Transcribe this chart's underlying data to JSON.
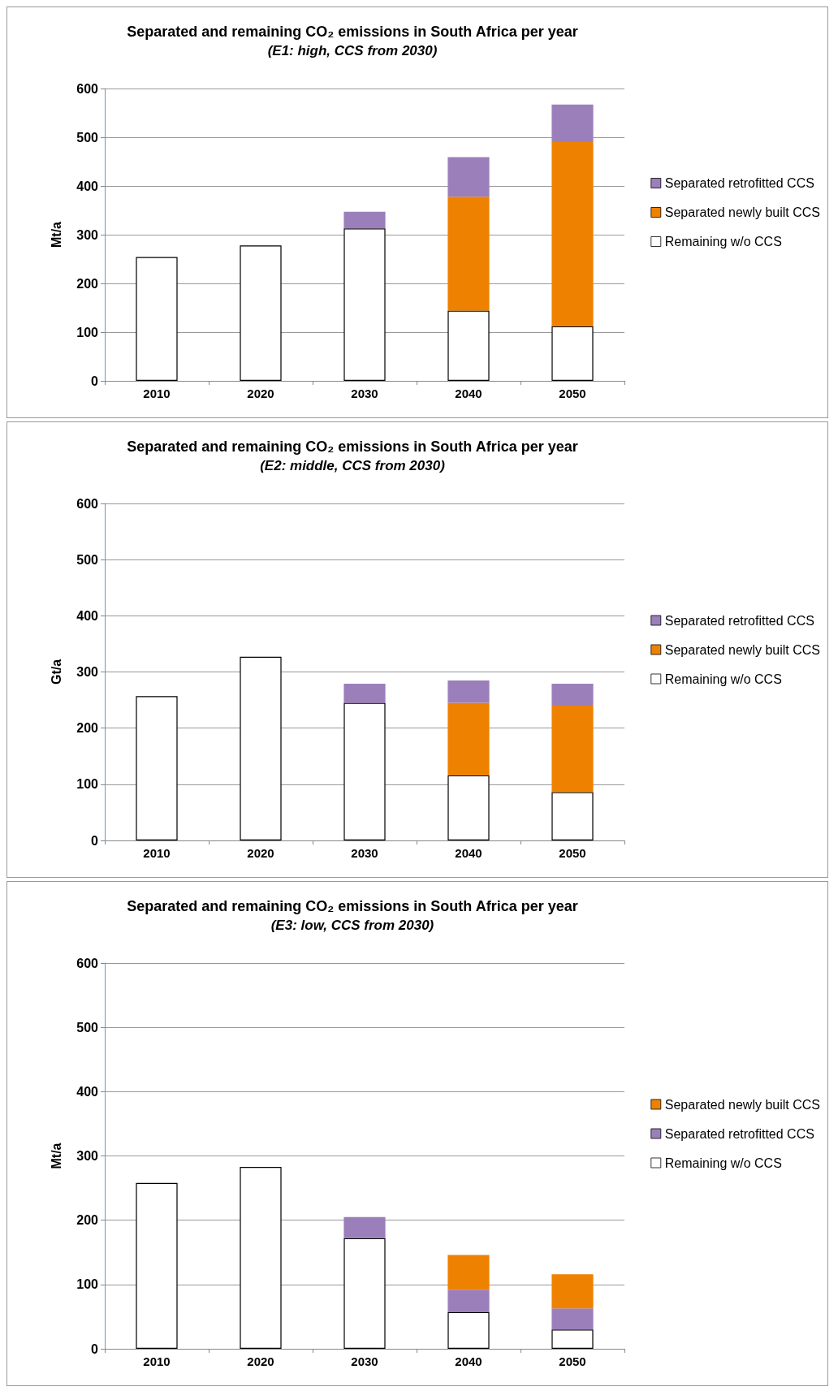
{
  "chart_data": [
    {
      "type": "bar",
      "title": "Separated and remaining CO₂ emissions in South Africa per year",
      "subtitle": "(E1: high, CCS from 2030)",
      "ylabel": "Mt/a",
      "categories": [
        "2010",
        "2020",
        "2030",
        "2040",
        "2050"
      ],
      "stacked": true,
      "ylim": [
        0,
        600
      ],
      "yticks": [
        0,
        100,
        200,
        300,
        400,
        500,
        600
      ],
      "grid": "y",
      "legend": "right",
      "series": [
        {
          "name": "Remaining w/o CCS",
          "color": "#ffffff",
          "values": [
            254,
            278,
            313,
            144,
            112
          ]
        },
        {
          "name": "Separated newly built CCS",
          "color": "#ee8100",
          "values": [
            null,
            null,
            null,
            234,
            378
          ]
        },
        {
          "name": "Separated retrofitted CCS",
          "color": "#9b7fbb",
          "values": [
            null,
            null,
            34,
            81,
            77
          ]
        }
      ]
    },
    {
      "type": "bar",
      "title": "Separated and remaining CO₂ emissions in South Africa per year",
      "subtitle": "(E2: middle, CCS from 2030)",
      "ylabel": "Gt/a",
      "categories": [
        "2010",
        "2020",
        "2030",
        "2040",
        "2050"
      ],
      "stacked": true,
      "ylim": [
        0,
        600
      ],
      "yticks": [
        0,
        100,
        200,
        300,
        400,
        500,
        600
      ],
      "grid": "y",
      "legend": "right",
      "series": [
        {
          "name": "Remaining w/o CCS",
          "color": "#ffffff",
          "values": [
            257,
            327,
            245,
            116,
            86
          ]
        },
        {
          "name": "Separated newly built CCS",
          "color": "#ee8100",
          "values": [
            null,
            null,
            null,
            129,
            154
          ]
        },
        {
          "name": "Separated retrofitted CCS",
          "color": "#9b7fbb",
          "values": [
            null,
            null,
            34,
            40,
            39
          ]
        }
      ]
    },
    {
      "type": "bar",
      "title": "Separated and remaining CO₂ emissions in South Africa per year",
      "subtitle": "(E3: low, CCS from 2030)",
      "ylabel": "Mt/a",
      "categories": [
        "2010",
        "2020",
        "2030",
        "2040",
        "2050"
      ],
      "stacked": true,
      "ylim": [
        0,
        600
      ],
      "yticks": [
        0,
        100,
        200,
        300,
        400,
        500,
        600
      ],
      "grid": "y",
      "legend": "right",
      "series": [
        {
          "name": "Remaining w/o CCS",
          "color": "#ffffff",
          "values": [
            258,
            283,
            172,
            57,
            30
          ]
        },
        {
          "name": "Separated retrofitted CCS",
          "color": "#9b7fbb",
          "values": [
            null,
            null,
            33,
            35,
            33
          ]
        },
        {
          "name": "Separated newly built CCS",
          "color": "#ee8100",
          "values": [
            null,
            null,
            null,
            54,
            53
          ]
        }
      ]
    }
  ]
}
